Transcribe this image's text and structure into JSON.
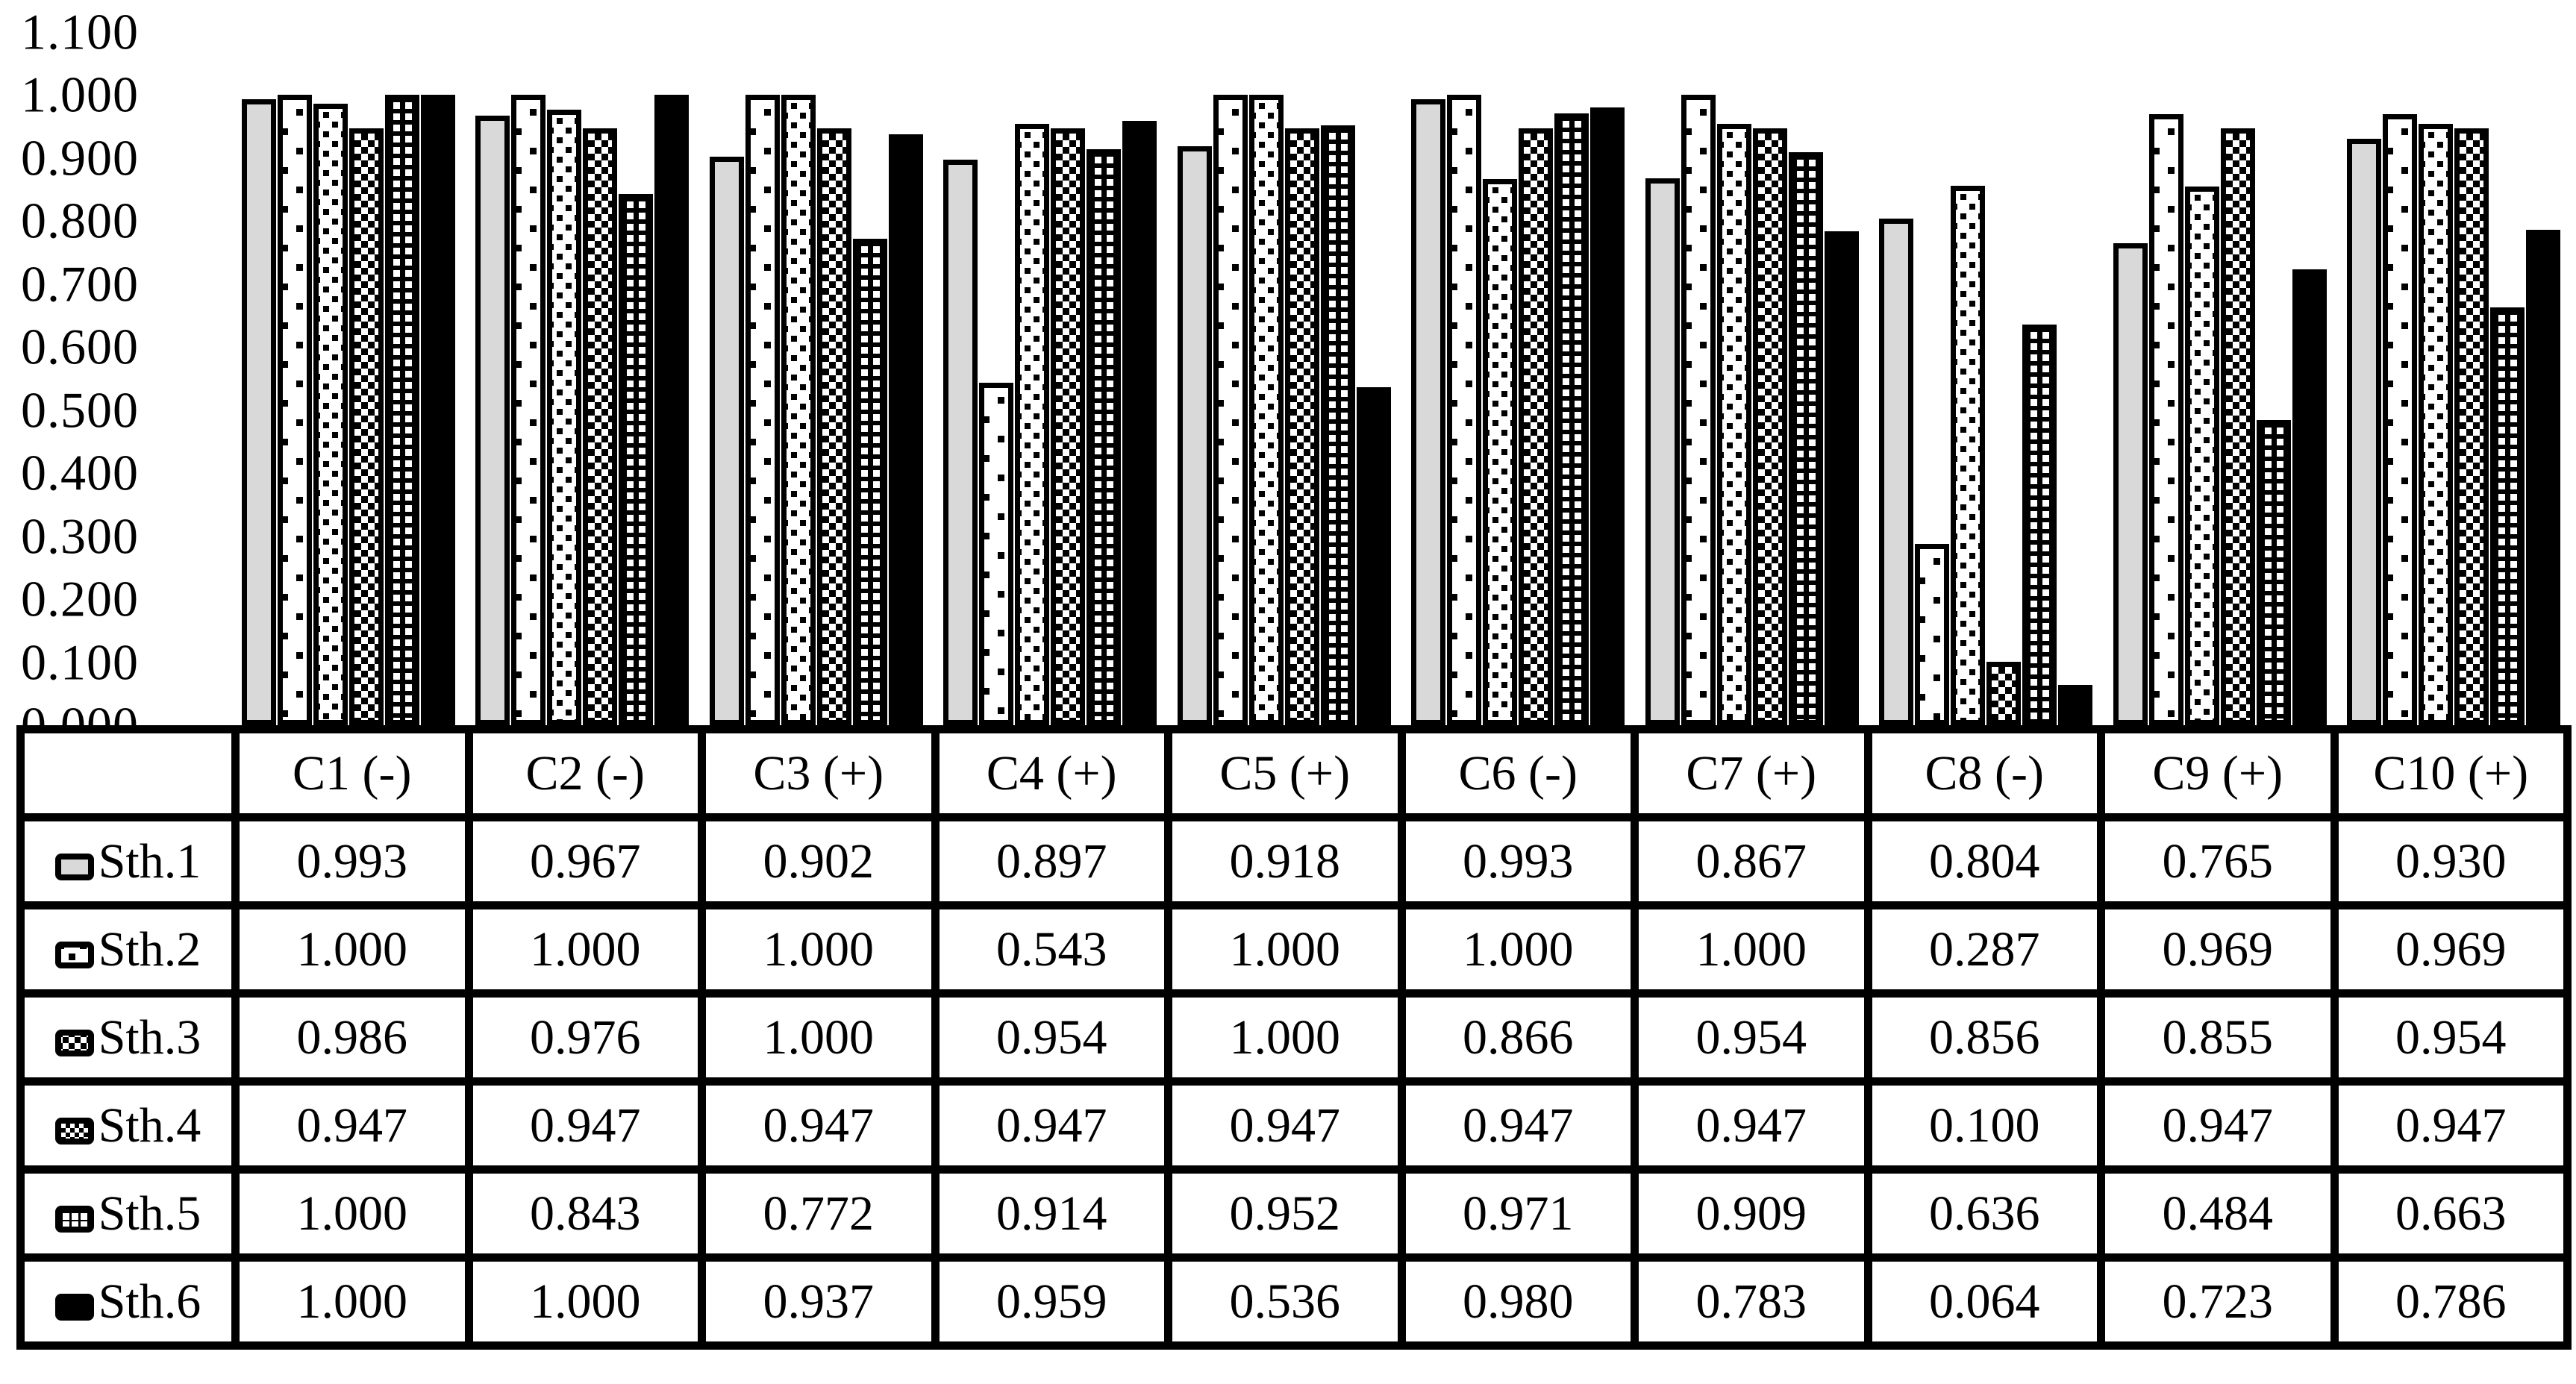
{
  "figure": {
    "kind": "excel-style clustered bar chart with data table legend",
    "background": "#ffffff"
  },
  "colors": {
    "bar_border": "#000000",
    "series1_fill": "#d9d9d9",
    "black": "#000000",
    "white": "#ffffff"
  },
  "y_axis": {
    "ticks": [
      "1.100",
      "1.000",
      "0.900",
      "0.800",
      "0.700",
      "0.600",
      "0.500",
      "0.400",
      "0.300",
      "0.200",
      "0.100",
      "0.000"
    ]
  },
  "chart_data": {
    "type": "bar",
    "title": "",
    "xlabel": "",
    "ylabel": "",
    "ylim": [
      0,
      1.1
    ],
    "ytick_step": 0.1,
    "grid": false,
    "legend_position": "left column of data table",
    "categories": [
      "C1 (-)",
      "C2 (-)",
      "C3 (+)",
      "C4 (+)",
      "C5 (+)",
      "C6 (-)",
      "C7 (+)",
      "C8 (-)",
      "C9 (+)",
      "C10 (+)"
    ],
    "series": [
      {
        "name": "Sth.1",
        "pattern": "light-gray-solid",
        "values": [
          0.993,
          0.967,
          0.902,
          0.897,
          0.918,
          0.993,
          0.867,
          0.804,
          0.765,
          0.93
        ]
      },
      {
        "name": "Sth.2",
        "pattern": "white-sparse-dots",
        "values": [
          1.0,
          1.0,
          1.0,
          0.543,
          1.0,
          1.0,
          1.0,
          0.287,
          0.969,
          0.969
        ]
      },
      {
        "name": "Sth.3",
        "pattern": "white-dense-dots",
        "values": [
          0.986,
          0.976,
          1.0,
          0.954,
          1.0,
          0.866,
          0.954,
          0.856,
          0.855,
          0.954
        ]
      },
      {
        "name": "Sth.4",
        "pattern": "fine-checkerboard",
        "values": [
          0.947,
          0.947,
          0.947,
          0.947,
          0.947,
          0.947,
          0.947,
          0.1,
          0.947,
          0.947
        ]
      },
      {
        "name": "Sth.5",
        "pattern": "white-grid-on-black",
        "values": [
          1.0,
          0.843,
          0.772,
          0.914,
          0.952,
          0.971,
          0.909,
          0.636,
          0.484,
          0.663
        ]
      },
      {
        "name": "Sth.6",
        "pattern": "black-solid",
        "values": [
          1.0,
          1.0,
          0.937,
          0.959,
          0.536,
          0.98,
          0.783,
          0.064,
          0.723,
          0.786
        ]
      }
    ],
    "value_format": "0.000"
  }
}
